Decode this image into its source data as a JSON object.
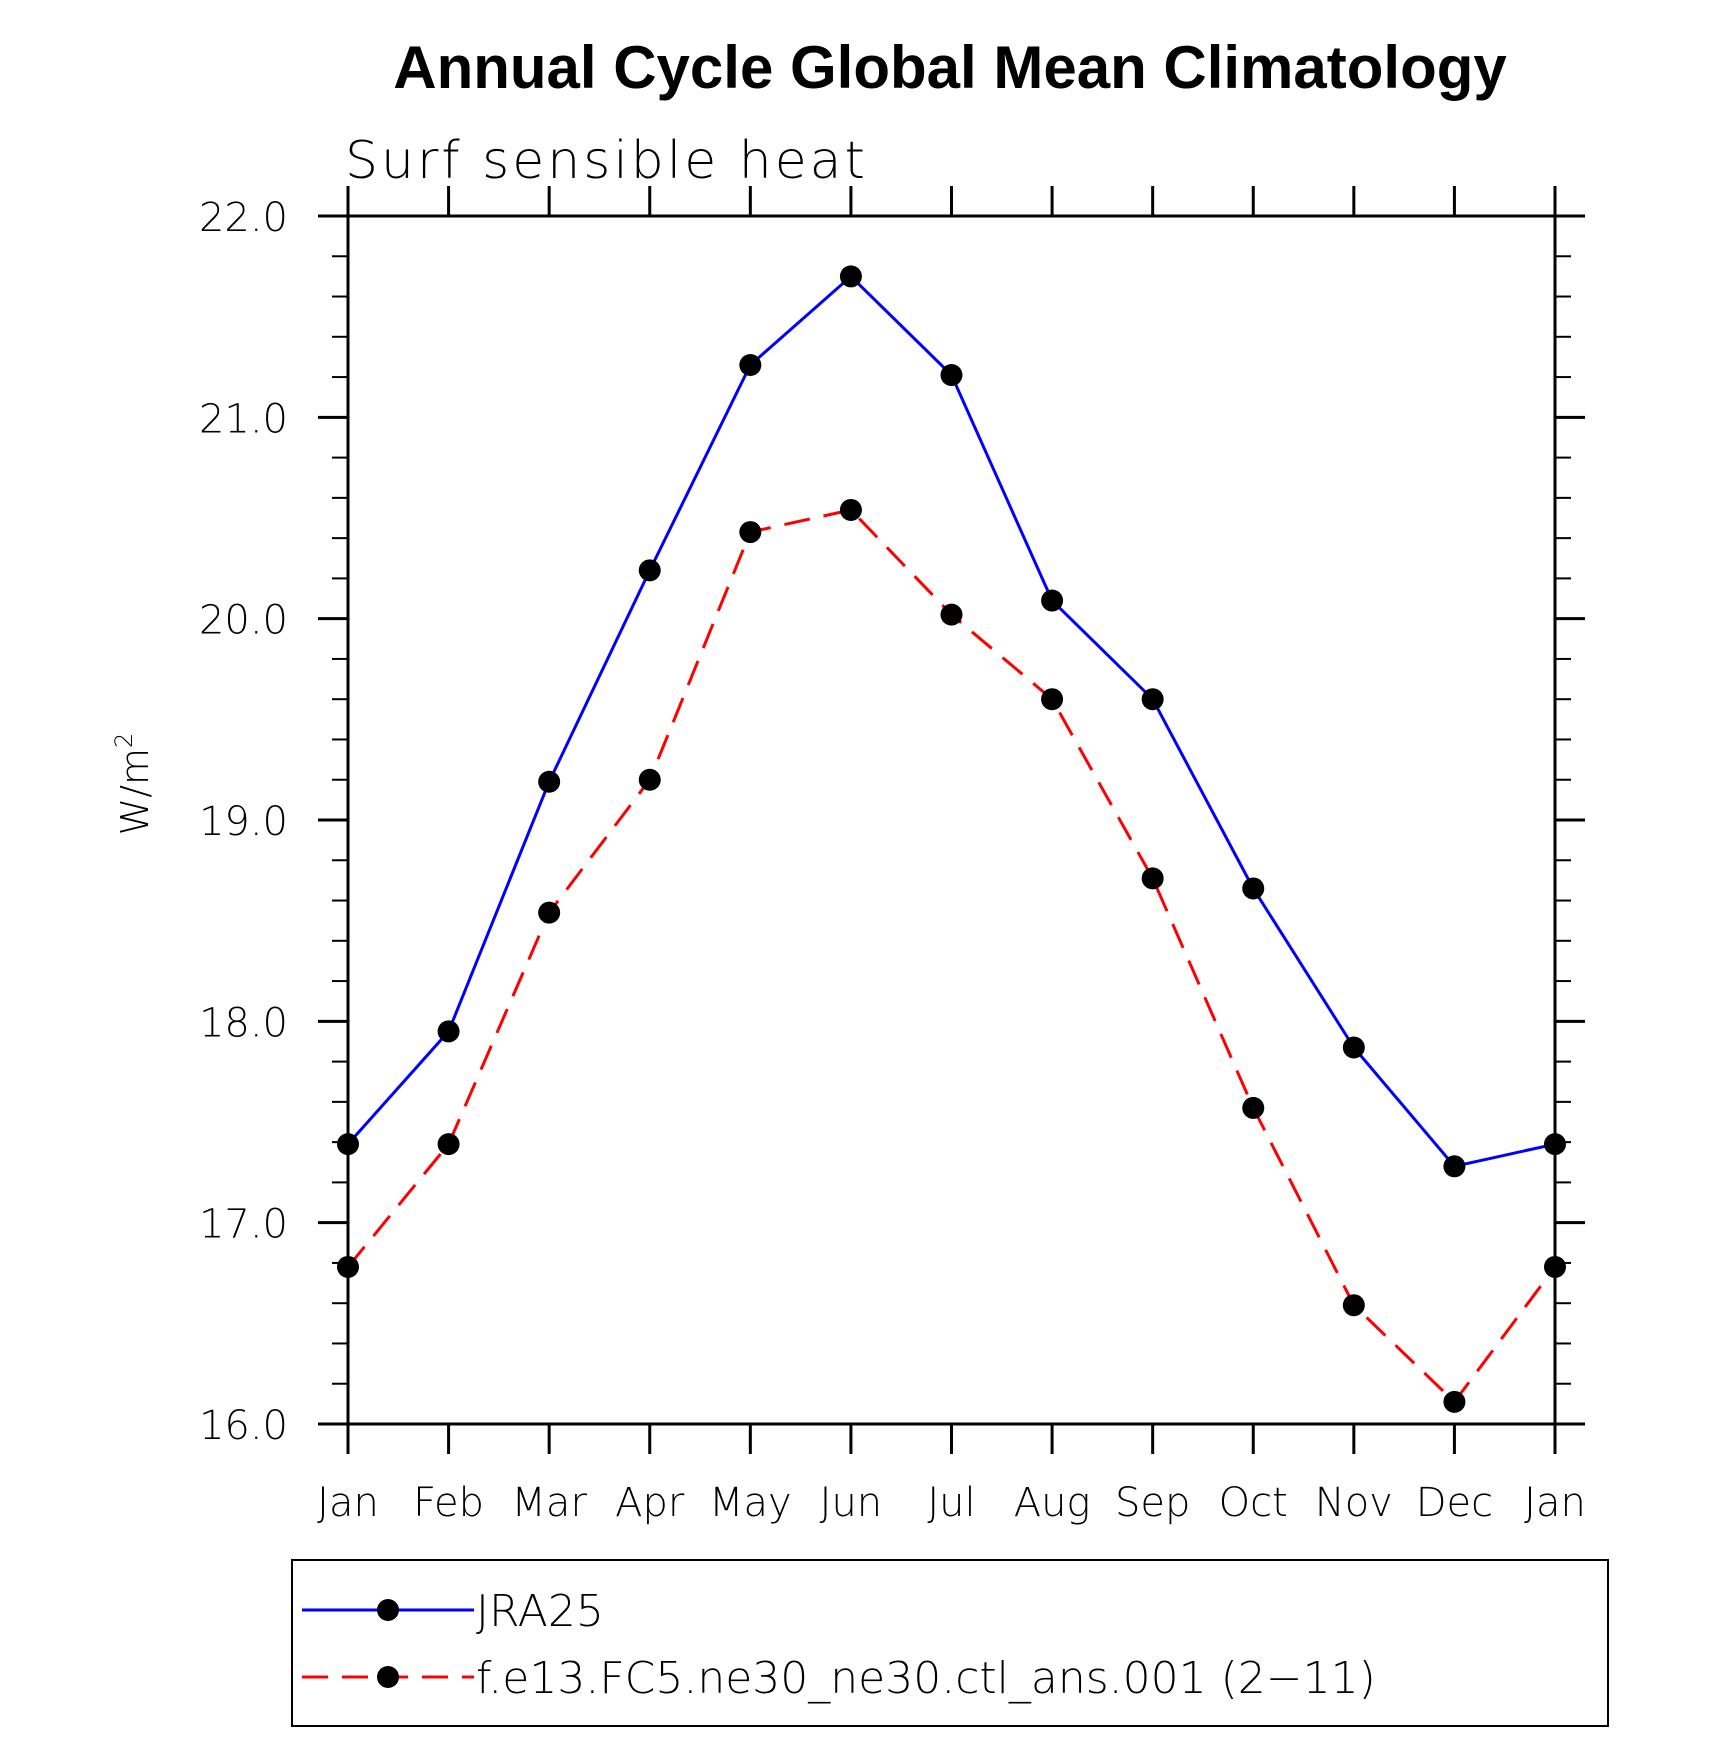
{
  "chart_data": {
    "type": "line",
    "title": "Annual Cycle Global Mean Climatology",
    "subtitle": "Surf sensible heat",
    "ylabel": "W/m",
    "ylabel_sup": "2",
    "xlabel": "",
    "categories": [
      "Jan",
      "Feb",
      "Mar",
      "Apr",
      "May",
      "Jun",
      "Jul",
      "Aug",
      "Sep",
      "Oct",
      "Nov",
      "Dec",
      "Jan"
    ],
    "ylim": [
      16.0,
      22.0
    ],
    "yticks": [
      "16.0",
      "17.0",
      "18.0",
      "19.0",
      "20.0",
      "21.0",
      "22.0"
    ],
    "grid": false,
    "legend_position": "bottom",
    "series": [
      {
        "name": "JRA25",
        "color": "#0000ff",
        "dash": "solid",
        "values": [
          17.39,
          17.95,
          19.19,
          20.24,
          21.26,
          21.7,
          21.21,
          20.09,
          19.6,
          18.66,
          17.87,
          17.28,
          17.39
        ]
      },
      {
        "name": "f.e13.FC5.ne30_ne30.ctl_ans.001 (2−11)",
        "color": "#ff0000",
        "dash": "dashed",
        "values": [
          16.78,
          17.39,
          18.54,
          19.2,
          20.43,
          20.54,
          20.02,
          19.6,
          18.71,
          17.57,
          16.59,
          16.11,
          16.78
        ]
      }
    ]
  }
}
